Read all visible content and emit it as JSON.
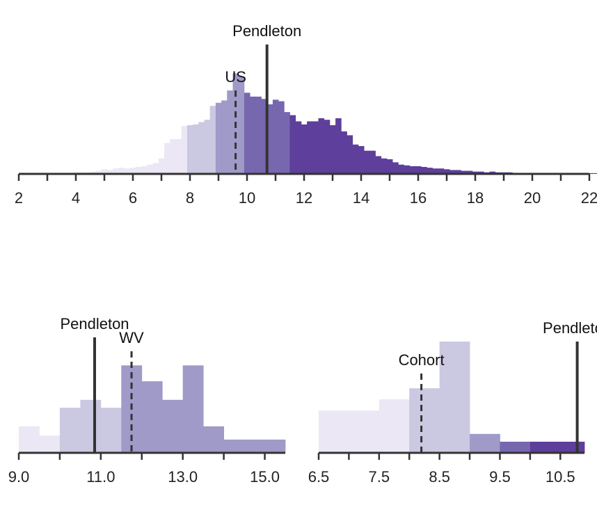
{
  "colors": {
    "bin_colors": [
      "#ebe7f4",
      "#cbc8e1",
      "#9f9ac8",
      "#7767af",
      "#5e3f9b"
    ],
    "axis": "#333333",
    "ref_line": "#333333"
  },
  "chart_data": [
    {
      "type": "histogram",
      "title": "",
      "xlabel": "",
      "ylabel": "",
      "xlim": [
        2,
        22
      ],
      "ylim": [
        0,
        0.135
      ],
      "xticks": [
        2,
        4,
        6,
        8,
        10,
        12,
        14,
        16,
        18,
        20,
        22
      ],
      "tick_labels": [
        "2",
        "4",
        "6",
        "8",
        "10",
        "12",
        "14",
        "16",
        "18",
        "20",
        "22"
      ],
      "minor_tick_step": 1,
      "class_breaks": [
        7.9,
        8.9,
        10.0,
        11.6
      ],
      "bins": {
        "start": 3.7,
        "width": 0.2,
        "values": [
          0.001,
          0.002,
          0.002,
          0.002,
          0.003,
          0.004,
          0.006,
          0.005,
          0.007,
          0.008,
          0.007,
          0.008,
          0.009,
          0.01,
          0.012,
          0.014,
          0.02,
          0.04,
          0.045,
          0.045,
          0.062,
          0.063,
          0.064,
          0.067,
          0.07,
          0.088,
          0.092,
          0.095,
          0.108,
          0.13,
          0.126,
          0.105,
          0.1,
          0.1,
          0.097,
          0.09,
          0.096,
          0.094,
          0.08,
          0.076,
          0.068,
          0.064,
          0.068,
          0.068,
          0.072,
          0.07,
          0.063,
          0.072,
          0.055,
          0.05,
          0.038,
          0.036,
          0.03,
          0.03,
          0.023,
          0.02,
          0.019,
          0.015,
          0.012,
          0.011,
          0.01,
          0.01,
          0.009,
          0.008,
          0.007,
          0.007,
          0.006,
          0.005,
          0.005,
          0.004,
          0.004,
          0.003,
          0.003,
          0.002,
          0.003,
          0.002,
          0.002,
          0.002,
          0.001,
          0.001,
          0.001,
          0.001,
          0.001,
          0.001,
          0.001,
          0.001,
          0.001,
          0.001,
          0.001,
          0.001,
          0.001,
          0.001,
          0.001,
          0.001,
          0.001,
          0.001,
          0.001,
          0.001
        ]
      },
      "reference_lines": [
        {
          "label": "US",
          "x": 9.6,
          "style": "dashed",
          "height_frac": 0.6
        },
        {
          "label": "Pendleton",
          "x": 10.7,
          "style": "solid",
          "height_frac": 0.93
        }
      ]
    },
    {
      "type": "histogram",
      "title": "",
      "xlabel": "",
      "ylabel": "",
      "xlim": [
        9.0,
        15.5
      ],
      "ylim": [
        0,
        4.2
      ],
      "xticks": [
        9.0,
        11.0,
        13.0,
        15.0
      ],
      "tick_labels": [
        "9.0",
        "11.0",
        "13.0",
        "15.0"
      ],
      "minor_tick_step": 1,
      "class_breaks": [
        10.0,
        11.5
      ],
      "bins": {
        "edges": [
          9.0,
          9.5,
          10.0,
          10.5,
          11.0,
          11.5,
          12.0,
          12.5,
          13.0,
          13.5,
          14.0,
          15.5
        ],
        "values": [
          1.0,
          0.65,
          1.7,
          2.0,
          1.7,
          3.3,
          2.7,
          2.0,
          3.3,
          1.0,
          0.5
        ]
      },
      "reference_lines": [
        {
          "label": "Pendleton",
          "x": 10.85,
          "style": "solid",
          "height_frac": 0.83
        },
        {
          "label": "WV",
          "x": 11.75,
          "style": "dashed",
          "height_frac": 0.73
        }
      ]
    },
    {
      "type": "histogram",
      "title": "",
      "xlabel": "",
      "ylabel": "",
      "xlim": [
        6.5,
        10.9
      ],
      "ylim": [
        0,
        1.0
      ],
      "xticks": [
        6.5,
        7.5,
        8.5,
        9.5,
        10.5
      ],
      "tick_labels": [
        "6.5",
        "7.5",
        "8.5",
        "9.5",
        "10.5"
      ],
      "minor_tick_step": 0.5,
      "class_breaks": [
        8.0,
        9.0,
        9.5,
        10.0
      ],
      "bins": {
        "edges": [
          6.5,
          7.5,
          8.0,
          8.5,
          9.0,
          9.5,
          10.0,
          10.9
        ],
        "values": [
          0.38,
          0.48,
          0.58,
          1.0,
          0.17,
          0.1,
          0.1
        ]
      },
      "reference_lines": [
        {
          "label": "Cohort",
          "x": 8.2,
          "style": "dashed",
          "height_frac": 0.57
        },
        {
          "label": "Pendleton",
          "x": 10.78,
          "style": "solid",
          "height_frac": 0.8
        }
      ]
    }
  ]
}
